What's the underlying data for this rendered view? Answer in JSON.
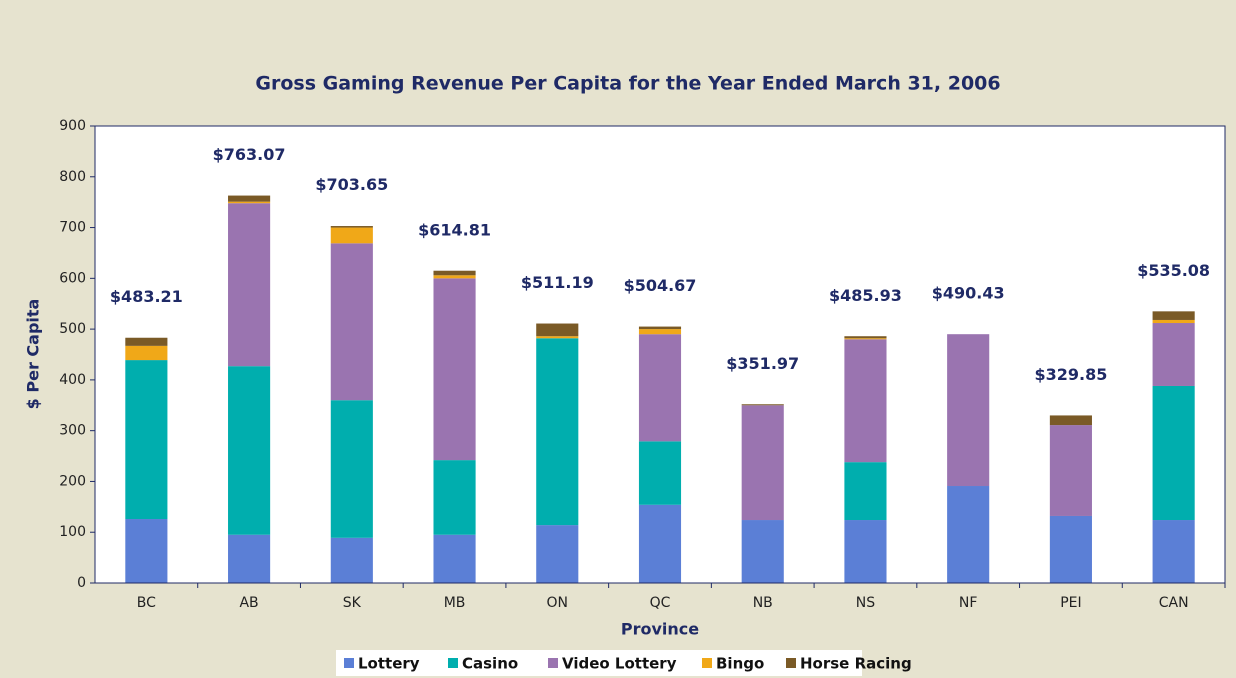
{
  "chart_data": {
    "type": "stacked_bar",
    "title": "Gross Gaming Revenue Per Capita for the Year Ended March 31, 2006",
    "x_label": "Province",
    "y_label": "$ Per Capita",
    "categories": [
      "BC",
      "AB",
      "SK",
      "MB",
      "ON",
      "QC",
      "NB",
      "NS",
      "NF",
      "PEI",
      "CAN"
    ],
    "series": [
      {
        "name": "Lottery",
        "color": "#5b7fd6",
        "values": [
          126,
          95,
          89,
          95,
          114,
          154,
          124,
          124,
          191,
          132,
          124
        ]
      },
      {
        "name": "Casino",
        "color": "#00aeae",
        "values": [
          313,
          332,
          271,
          147,
          368,
          125,
          0,
          114,
          0,
          0,
          264
        ]
      },
      {
        "name": "Video Lottery",
        "color": "#9a74b0",
        "values": [
          0,
          321,
          309,
          358,
          0,
          211,
          226,
          242,
          299,
          179,
          124
        ]
      },
      {
        "name": "Bingo",
        "color": "#f0a818",
        "values": [
          28,
          3,
          31,
          6,
          4,
          10,
          0,
          2,
          0,
          0,
          6
        ]
      },
      {
        "name": "Horse Racing",
        "color": "#7a5a26",
        "values": [
          16,
          12,
          3,
          9,
          25,
          5,
          2,
          4,
          0,
          19,
          17
        ]
      }
    ],
    "totals": [
      483.21,
      763.07,
      703.65,
      614.81,
      511.19,
      504.67,
      351.97,
      485.93,
      490.43,
      329.85,
      535.08
    ],
    "total_labels": [
      "$483.21",
      "$763.07",
      "$703.65",
      "$614.81",
      "$511.19",
      "$504.67",
      "$351.97",
      "$485.93",
      "$490.43",
      "$329.85",
      "$535.08"
    ],
    "ylim": [
      0,
      900
    ],
    "yticks": [
      0,
      100,
      200,
      300,
      400,
      500,
      600,
      700,
      800,
      900
    ],
    "legend": "bottom"
  }
}
